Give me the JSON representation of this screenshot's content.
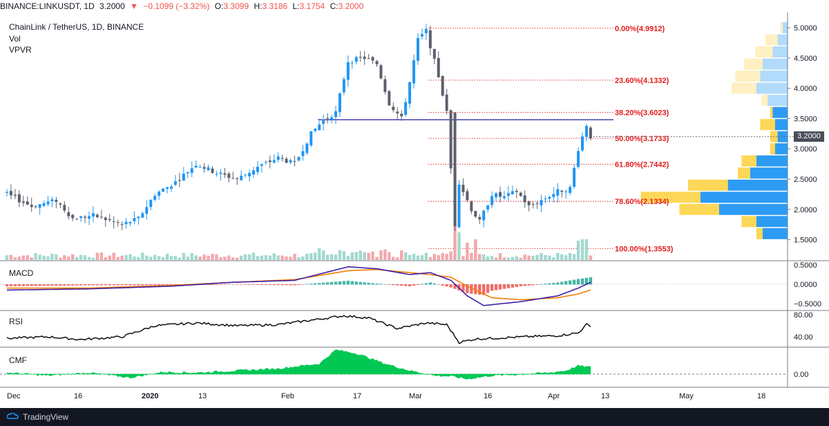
{
  "header": {
    "symbol": "BINANCE:LINKUSDT, 1D",
    "last": "3.2000",
    "arrow": "▼",
    "change": "−0.1099 (−3.32%)",
    "o_label": "O:",
    "o_value": "3.3099",
    "h_label": "H:",
    "h_value": "3.3186",
    "l_label": "L:",
    "l_value": "3.1754",
    "c_label": "C:",
    "c_value": "3.2000"
  },
  "legend": {
    "title": "ChainLink / TetherUS, 1D, BINANCE",
    "vol": "Vol",
    "vpvr": "VPVR",
    "macd": "MACD",
    "rsi": "RSI",
    "cmf": "CMF"
  },
  "price_badge": "3.2000",
  "footer": {
    "brand": "TradingView"
  },
  "colors": {
    "up": "#2196f3",
    "down": "#5d606b",
    "vol_up": "#a3d9cf",
    "vol_down": "#f4a8ad",
    "fib": "#e31c1c",
    "resistance": "#1d1aa8",
    "macd_line": "#3f1fa6",
    "signal_line": "#f57c00",
    "hist_pos": "#26a69a",
    "hist_neg": "#ef5350",
    "rsi": "#000000",
    "cmf": "#00c853",
    "vp_up": "#2196f3",
    "vp_down": "#fdd54e"
  },
  "chart_data": [
    {
      "type": "candlestick",
      "title": "ChainLink / TetherUS, 1D, BINANCE",
      "x_ticks": [
        "Dec",
        "16",
        "2020",
        "13",
        "Feb",
        "17",
        "Mar",
        "16",
        "Apr",
        "13",
        "May",
        "18"
      ],
      "y_ticks": [
        "5.0000",
        "4.5000",
        "4.0000",
        "3.5000",
        "3.0000",
        "2.5000",
        "2.0000",
        "1.5000"
      ],
      "ylim": [
        1.3,
        5.05
      ],
      "resistance_level": 3.48,
      "fib_levels": [
        {
          "label": "0.00%(4.9912)",
          "value": 4.9912
        },
        {
          "label": "23.60%(4.1332)",
          "value": 4.1332
        },
        {
          "label": "38.20%(3.6023)",
          "value": 3.6023
        },
        {
          "label": "50.00%(3.1733)",
          "value": 3.1733
        },
        {
          "label": "61.80%(2.7442)",
          "value": 2.7442
        },
        {
          "label": "78.60%(2.1334)",
          "value": 2.1334
        },
        {
          "label": "100.00%(1.3553)",
          "value": 1.3553
        }
      ],
      "close_anchors": [
        [
          0,
          2.25
        ],
        [
          6,
          2.05
        ],
        [
          12,
          2.15
        ],
        [
          16,
          1.85
        ],
        [
          21,
          1.9
        ],
        [
          28,
          1.75
        ],
        [
          32,
          1.85
        ],
        [
          36,
          2.25
        ],
        [
          41,
          2.45
        ],
        [
          46,
          2.75
        ],
        [
          51,
          2.6
        ],
        [
          56,
          2.5
        ],
        [
          61,
          2.7
        ],
        [
          66,
          2.85
        ],
        [
          70,
          2.75
        ],
        [
          74,
          3.25
        ],
        [
          77,
          3.48
        ],
        [
          80,
          3.6
        ],
        [
          83,
          4.45
        ],
        [
          87,
          4.5
        ],
        [
          90,
          4.4
        ],
        [
          93,
          3.75
        ],
        [
          96,
          3.5
        ],
        [
          98,
          4.1
        ],
        [
          100,
          4.8
        ],
        [
          102,
          4.95
        ],
        [
          105,
          4.2
        ],
        [
          107,
          3.6
        ],
        [
          109,
          1.75
        ],
        [
          110,
          2.45
        ],
        [
          113,
          2.0
        ],
        [
          115,
          1.8
        ],
        [
          118,
          2.25
        ],
        [
          121,
          2.2
        ],
        [
          124,
          2.3
        ],
        [
          127,
          2.05
        ],
        [
          130,
          2.15
        ],
        [
          134,
          2.3
        ],
        [
          137,
          2.35
        ],
        [
          139,
          3.0
        ],
        [
          141,
          3.4
        ],
        [
          142,
          3.2
        ]
      ],
      "volume": {
        "spikes": [
          {
            "day": 109,
            "value": 55
          },
          {
            "day": 110,
            "value": 40
          },
          {
            "day": 112,
            "value": 25
          },
          {
            "day": 114,
            "value": 30
          },
          {
            "day": 139,
            "value": 28
          },
          {
            "day": 140,
            "value": 30
          },
          {
            "day": 141,
            "value": 30
          }
        ]
      },
      "volume_profile": [
        {
          "price": 1.6,
          "up": 0.2,
          "down": 0.05
        },
        {
          "price": 1.8,
          "up": 0.25,
          "down": 0.12
        },
        {
          "price": 2.0,
          "up": 0.55,
          "down": 0.32
        },
        {
          "price": 2.2,
          "up": 0.7,
          "down": 0.48
        },
        {
          "price": 2.4,
          "up": 0.48,
          "down": 0.32
        },
        {
          "price": 2.6,
          "up": 0.3,
          "down": 0.1
        },
        {
          "price": 2.8,
          "up": 0.25,
          "down": 0.12
        },
        {
          "price": 3.0,
          "up": 0.1,
          "down": 0.04
        },
        {
          "price": 3.2,
          "up": 0.08,
          "down": 0.06
        },
        {
          "price": 3.4,
          "up": 0.1,
          "down": 0.12
        },
        {
          "price": 3.6,
          "up": 0.12,
          "down": 0.02
        },
        {
          "price": 3.8,
          "up": 0.16,
          "down": 0.05
        },
        {
          "price": 4.0,
          "up": 0.25,
          "down": 0.2
        },
        {
          "price": 4.2,
          "up": 0.22,
          "down": 0.2
        },
        {
          "price": 4.4,
          "up": 0.2,
          "down": 0.15
        },
        {
          "price": 4.6,
          "up": 0.12,
          "down": 0.14
        },
        {
          "price": 4.8,
          "up": 0.08,
          "down": 0.1
        },
        {
          "price": 5.0,
          "up": 0.04,
          "down": 0.02
        }
      ]
    },
    {
      "type": "line",
      "name": "MACD",
      "y_ticks": [
        "0.5000",
        "0.0000",
        "−0.5000"
      ],
      "ylim": [
        -0.6,
        0.55
      ],
      "macd_anchors": [
        [
          0,
          -0.15
        ],
        [
          20,
          -0.12
        ],
        [
          40,
          -0.05
        ],
        [
          55,
          0.05
        ],
        [
          70,
          0.1
        ],
        [
          83,
          0.45
        ],
        [
          90,
          0.4
        ],
        [
          98,
          0.25
        ],
        [
          103,
          0.3
        ],
        [
          108,
          0.1
        ],
        [
          112,
          -0.3
        ],
        [
          116,
          -0.55
        ],
        [
          125,
          -0.45
        ],
        [
          134,
          -0.3
        ],
        [
          139,
          -0.1
        ],
        [
          142,
          0.05
        ]
      ],
      "signal_anchors": [
        [
          0,
          -0.1
        ],
        [
          20,
          -0.1
        ],
        [
          40,
          -0.03
        ],
        [
          55,
          0.05
        ],
        [
          70,
          0.12
        ],
        [
          83,
          0.35
        ],
        [
          90,
          0.38
        ],
        [
          98,
          0.3
        ],
        [
          103,
          0.25
        ],
        [
          108,
          0.18
        ],
        [
          112,
          -0.05
        ],
        [
          118,
          -0.35
        ],
        [
          125,
          -0.4
        ],
        [
          134,
          -0.35
        ],
        [
          139,
          -0.25
        ],
        [
          142,
          -0.15
        ]
      ]
    },
    {
      "type": "line",
      "name": "RSI",
      "y_ticks": [
        "80.00",
        "40.00"
      ],
      "ylim": [
        20,
        85
      ],
      "anchors": [
        [
          0,
          37
        ],
        [
          10,
          40
        ],
        [
          18,
          35
        ],
        [
          28,
          40
        ],
        [
          36,
          60
        ],
        [
          46,
          65
        ],
        [
          56,
          60
        ],
        [
          66,
          62
        ],
        [
          76,
          72
        ],
        [
          82,
          78
        ],
        [
          88,
          74
        ],
        [
          95,
          55
        ],
        [
          102,
          65
        ],
        [
          107,
          62
        ],
        [
          110,
          30
        ],
        [
          114,
          36
        ],
        [
          120,
          38
        ],
        [
          126,
          40
        ],
        [
          134,
          42
        ],
        [
          139,
          47
        ],
        [
          141,
          62
        ],
        [
          142,
          60
        ]
      ]
    },
    {
      "type": "area",
      "name": "CMF",
      "y_ticks": [
        "0.00"
      ],
      "ylim": [
        -0.15,
        0.45
      ],
      "anchors": [
        [
          0,
          0.02
        ],
        [
          10,
          -0.02
        ],
        [
          20,
          0.02
        ],
        [
          30,
          -0.05
        ],
        [
          38,
          0.03
        ],
        [
          46,
          0.02
        ],
        [
          56,
          0.05
        ],
        [
          66,
          0.08
        ],
        [
          76,
          0.15
        ],
        [
          80,
          0.35
        ],
        [
          85,
          0.3
        ],
        [
          92,
          0.15
        ],
        [
          98,
          0.05
        ],
        [
          104,
          -0.02
        ],
        [
          108,
          -0.03
        ],
        [
          112,
          -0.07
        ],
        [
          118,
          -0.02
        ],
        [
          126,
          0.0
        ],
        [
          132,
          0.02
        ],
        [
          136,
          0.05
        ],
        [
          139,
          0.12
        ],
        [
          142,
          0.1
        ]
      ]
    }
  ]
}
